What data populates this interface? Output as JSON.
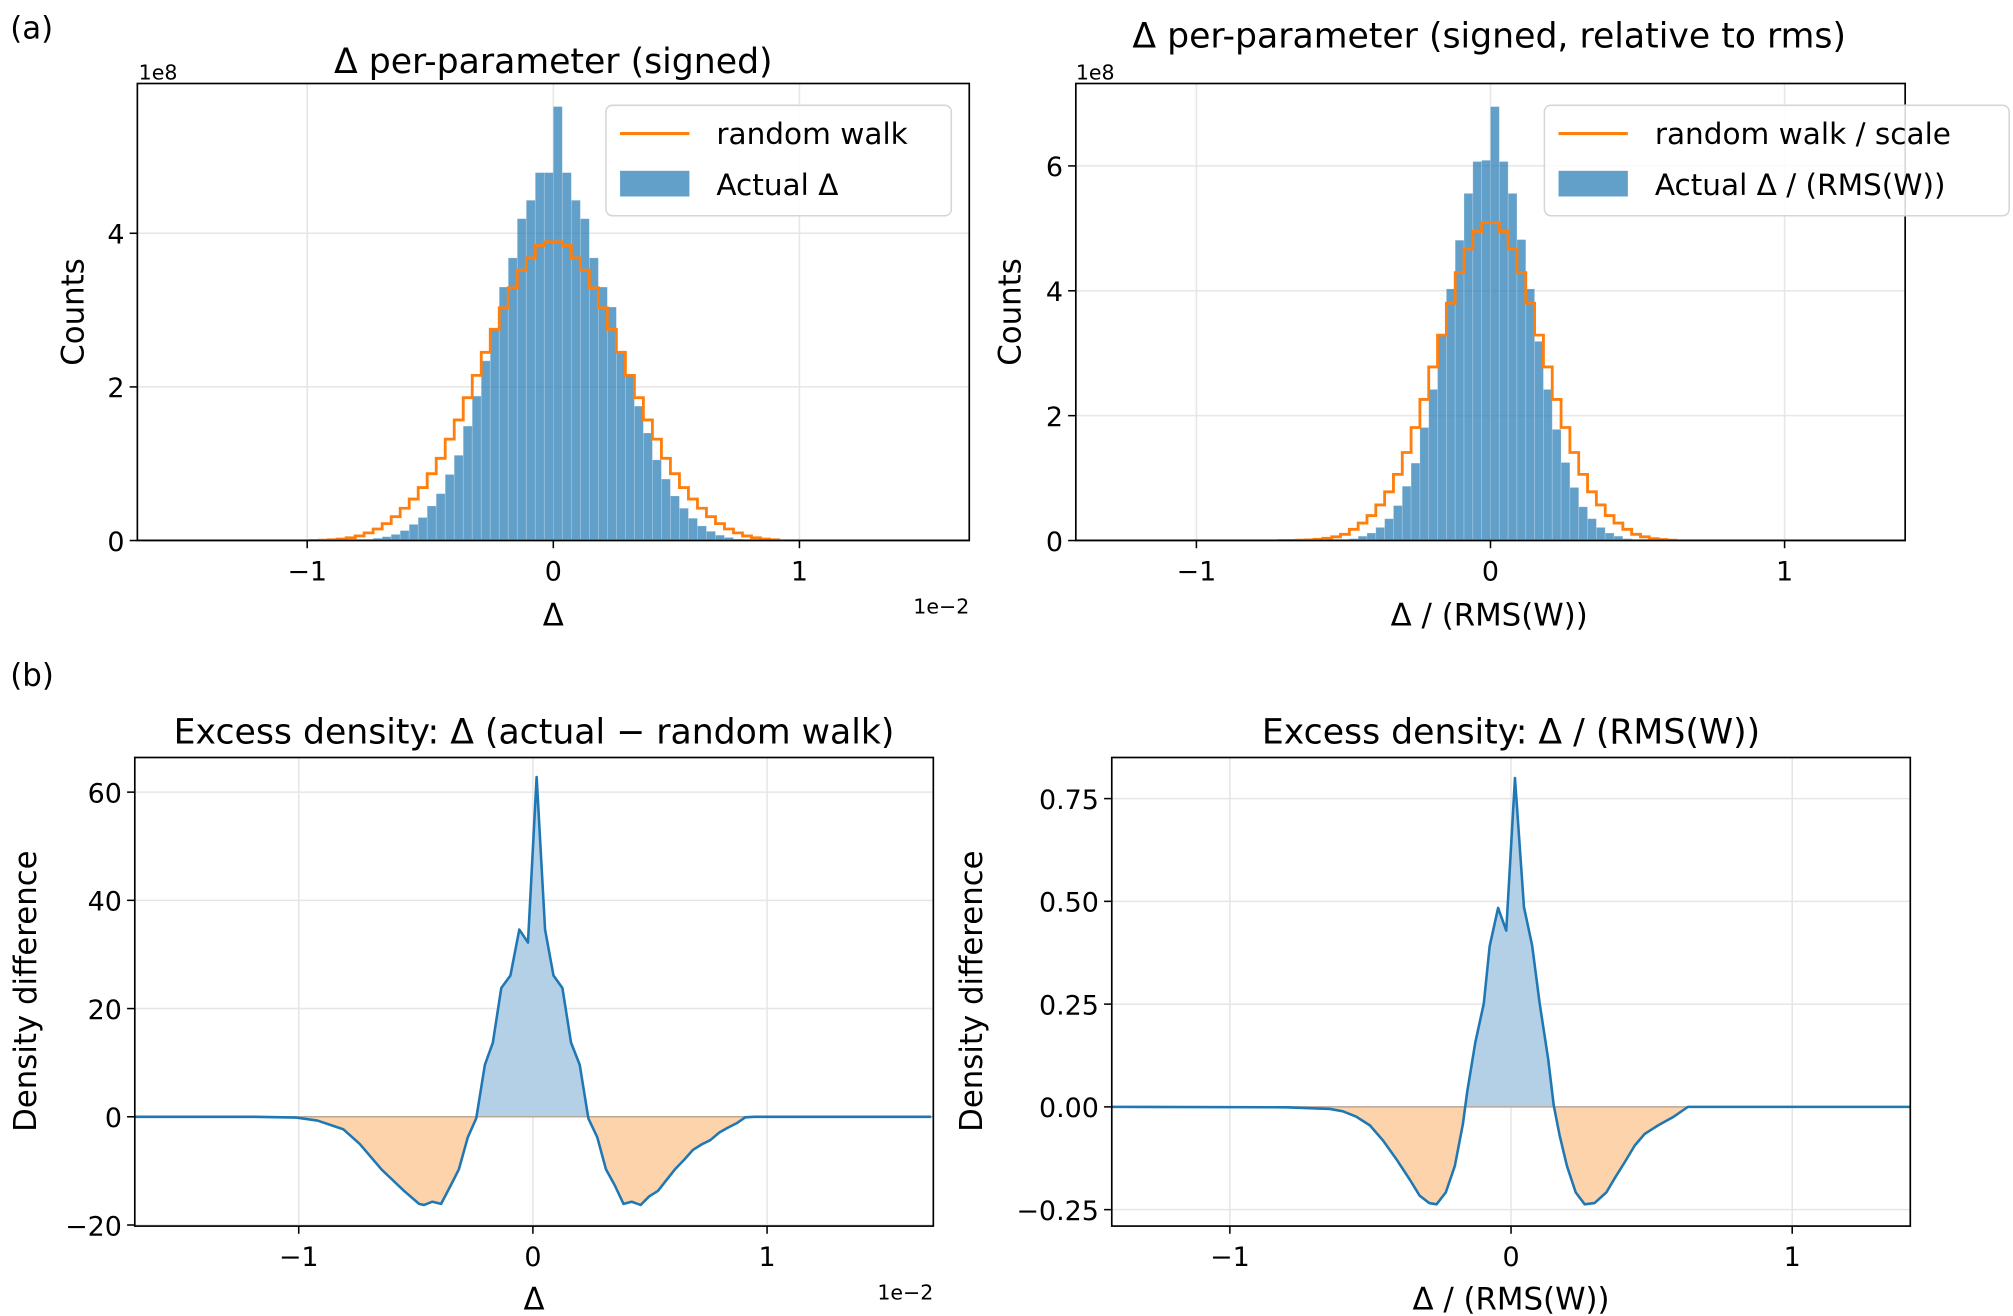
{
  "figure": {
    "panel_labels": [
      "(a)",
      "(b)"
    ]
  },
  "chart_data": [
    {
      "type": "bar",
      "title": "Δ per-parameter (signed)",
      "xlabel": "Δ",
      "ylabel": "Counts",
      "x_offset_label": "1e−2",
      "y_offset_label": "1e8",
      "xlim": [
        -1.69,
        1.69
      ],
      "ylim": [
        0,
        5.95
      ],
      "xticks": [
        -1,
        0,
        1
      ],
      "xtick_labels": [
        "−1",
        "0",
        "1"
      ],
      "yticks": [
        0,
        2,
        4
      ],
      "ytick_labels": [
        "0",
        "2",
        "4"
      ],
      "grid": true,
      "legend": {
        "position": "top-right",
        "entries": [
          "random walk",
          "Actual Δ"
        ]
      },
      "bin_start": -0.9882,
      "bin_width": 0.0366,
      "series": [
        {
          "name": "random walk",
          "kind": "step",
          "color": "#ff7f0e",
          "values": [
            0.002,
            0.005,
            0.01,
            0.02,
            0.035,
            0.06,
            0.1,
            0.15,
            0.22,
            0.31,
            0.42,
            0.54,
            0.69,
            0.87,
            1.07,
            1.32,
            1.57,
            1.86,
            2.15,
            2.45,
            2.75,
            3.03,
            3.29,
            3.52,
            3.68,
            3.84,
            3.89,
            3.89,
            3.84,
            3.68,
            3.52,
            3.29,
            3.03,
            2.75,
            2.45,
            2.15,
            1.86,
            1.57,
            1.32,
            1.07,
            0.87,
            0.69,
            0.54,
            0.42,
            0.31,
            0.22,
            0.15,
            0.1,
            0.06,
            0.035,
            0.02,
            0.01
          ]
        },
        {
          "name": "Actual Δ",
          "kind": "bar",
          "color": "#1f77b4",
          "values": [
            0,
            0,
            0.001,
            0.002,
            0.004,
            0.008,
            0.015,
            0.03,
            0.05,
            0.08,
            0.13,
            0.21,
            0.3,
            0.45,
            0.61,
            0.86,
            1.11,
            1.49,
            1.88,
            2.34,
            2.75,
            3.3,
            3.68,
            4.19,
            4.43,
            4.79,
            4.79,
            5.65,
            4.79,
            4.43,
            4.19,
            3.68,
            3.3,
            3.04,
            2.46,
            2.16,
            1.75,
            1.4,
            1.05,
            0.8,
            0.58,
            0.42,
            0.29,
            0.19,
            0.12,
            0.07,
            0.04,
            0.02,
            0.01,
            0.005,
            0.002,
            0.001
          ]
        }
      ]
    },
    {
      "type": "bar",
      "title": "Δ per-parameter (signed, relative to rms)",
      "xlabel": "Δ / (RMS(W))",
      "ylabel": "Counts",
      "y_offset_label": "1e8",
      "xlim": [
        -1.41,
        1.41
      ],
      "ylim": [
        0,
        7.32
      ],
      "xticks": [
        -1,
        0,
        1
      ],
      "xtick_labels": [
        "−1",
        "0",
        "1"
      ],
      "yticks": [
        0,
        2,
        4,
        6
      ],
      "ytick_labels": [
        "0",
        "2",
        "4",
        "6"
      ],
      "grid": true,
      "legend": {
        "position": "top-right",
        "entries": [
          "random walk / scale",
          "Actual Δ / (RMS(W))"
        ]
      },
      "bin_start": -0.72,
      "bin_width": 0.03,
      "series": [
        {
          "name": "random walk / scale",
          "kind": "step",
          "color": "#ff7f0e",
          "values": [
            0.001,
            0.002,
            0.005,
            0.01,
            0.02,
            0.035,
            0.06,
            0.1,
            0.18,
            0.28,
            0.4,
            0.57,
            0.78,
            1.06,
            1.41,
            1.81,
            2.26,
            2.78,
            3.29,
            3.8,
            4.29,
            4.67,
            4.95,
            5.09,
            5.09,
            4.95,
            4.67,
            4.29,
            3.8,
            3.29,
            2.78,
            2.26,
            1.81,
            1.41,
            1.06,
            0.78,
            0.57,
            0.4,
            0.28,
            0.18,
            0.1,
            0.06,
            0.03,
            0.015,
            0.005
          ]
        },
        {
          "name": "Actual Δ / (RMS(W))",
          "kind": "bar",
          "color": "#1f77b4",
          "values": [
            0,
            0,
            0,
            0,
            0,
            0.002,
            0.005,
            0.01,
            0.03,
            0.07,
            0.12,
            0.21,
            0.35,
            0.56,
            0.87,
            1.24,
            1.81,
            2.42,
            3.3,
            4.03,
            4.81,
            5.56,
            6.07,
            6.09,
            6.95,
            6.07,
            5.56,
            4.82,
            4.03,
            3.19,
            2.42,
            1.78,
            1.25,
            0.85,
            0.54,
            0.35,
            0.21,
            0.12,
            0.07,
            0.03,
            0.01,
            0.005,
            0,
            0,
            0
          ]
        }
      ]
    },
    {
      "type": "area",
      "title": "Excess density: Δ (actual − random walk)",
      "xlabel": "Δ",
      "ylabel": "Density difference",
      "x_offset_label": "1e−2",
      "xlim": [
        -1.7,
        1.71
      ],
      "ylim": [
        -20.2,
        66.4
      ],
      "xticks": [
        -1,
        0,
        1
      ],
      "xtick_labels": [
        "−1",
        "0",
        "1"
      ],
      "yticks": [
        -20,
        0,
        20,
        40,
        60
      ],
      "ytick_labels": [
        "−20",
        "0",
        "20",
        "40",
        "60"
      ],
      "grid": true,
      "line_color": "#1f77b4",
      "positive_fill": "#b3d0e6",
      "negative_fill": "#fdd3ab",
      "x": [
        -1.7,
        -1.2,
        -1.01,
        -0.92,
        -0.81,
        -0.74,
        -0.645,
        -0.55,
        -0.486,
        -0.465,
        -0.429,
        -0.392,
        -0.351,
        -0.316,
        -0.278,
        -0.242,
        -0.205,
        -0.171,
        -0.135,
        -0.096,
        -0.058,
        -0.021,
        0.016,
        0.052,
        0.088,
        0.126,
        0.163,
        0.2,
        0.237,
        0.275,
        0.312,
        0.35,
        0.387,
        0.422,
        0.46,
        0.497,
        0.534,
        0.572,
        0.609,
        0.647,
        0.684,
        0.721,
        0.758,
        0.796,
        0.833,
        0.87,
        0.907,
        0.945,
        1.7
      ],
      "y": [
        0,
        0,
        -0.15,
        -0.7,
        -2.3,
        -5.0,
        -9.8,
        -13.7,
        -16.1,
        -16.3,
        -15.7,
        -16.1,
        -12.7,
        -9.7,
        -3.8,
        -0.3,
        9.6,
        13.7,
        23.8,
        26.1,
        34.6,
        32.2,
        62.8,
        34.6,
        26.1,
        23.8,
        13.7,
        9.6,
        -0.3,
        -3.8,
        -9.7,
        -12.7,
        -16.1,
        -15.7,
        -16.3,
        -14.7,
        -13.7,
        -11.6,
        -9.6,
        -7.9,
        -6.1,
        -5.1,
        -4.3,
        -2.9,
        -2.0,
        -1.2,
        -0.1,
        0,
        0
      ]
    },
    {
      "type": "area",
      "title": "Excess density: Δ / (RMS(W))",
      "xlabel": "Δ / (RMS(W))",
      "ylabel": "Density difference",
      "xlim": [
        -1.42,
        1.42
      ],
      "ylim": [
        -0.29,
        0.85
      ],
      "xticks": [
        -1,
        0,
        1
      ],
      "xtick_labels": [
        "−1",
        "0",
        "1"
      ],
      "yticks": [
        -0.25,
        0,
        0.25,
        0.5,
        0.75
      ],
      "ytick_labels": [
        "−0.25",
        "0.00",
        "0.25",
        "0.50",
        "0.75"
      ],
      "grid": true,
      "line_color": "#1f77b4",
      "positive_fill": "#b3d0e6",
      "negative_fill": "#fdd3ab",
      "x": [
        -1.42,
        -0.8,
        -0.644,
        -0.597,
        -0.55,
        -0.502,
        -0.455,
        -0.408,
        -0.36,
        -0.325,
        -0.291,
        -0.265,
        -0.232,
        -0.2,
        -0.171,
        -0.156,
        -0.127,
        -0.097,
        -0.076,
        -0.046,
        -0.017,
        0.014,
        0.046,
        0.075,
        0.102,
        0.132,
        0.152,
        0.173,
        0.199,
        0.23,
        0.262,
        0.297,
        0.339,
        0.371,
        0.404,
        0.44,
        0.475,
        0.523,
        0.576,
        0.629,
        1.42
      ],
      "y": [
        0,
        -0.001,
        -0.005,
        -0.011,
        -0.024,
        -0.045,
        -0.082,
        -0.127,
        -0.177,
        -0.216,
        -0.234,
        -0.237,
        -0.208,
        -0.144,
        -0.041,
        0.036,
        0.157,
        0.251,
        0.391,
        0.484,
        0.429,
        0.8,
        0.486,
        0.393,
        0.251,
        0.117,
        0.003,
        -0.07,
        -0.144,
        -0.208,
        -0.237,
        -0.234,
        -0.208,
        -0.171,
        -0.135,
        -0.094,
        -0.066,
        -0.045,
        -0.025,
        0,
        0
      ]
    }
  ]
}
